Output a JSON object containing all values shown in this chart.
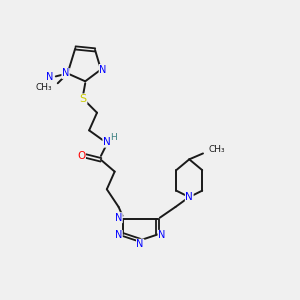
{
  "background_color": "#f0f0f0",
  "bond_color": "#1a1a1a",
  "atom_colors": {
    "N": "#0000ff",
    "O": "#ff0000",
    "S": "#cccc00",
    "H": "#3a8080",
    "C": "#1a1a1a"
  },
  "figsize": [
    3.0,
    3.0
  ],
  "dpi": 100
}
